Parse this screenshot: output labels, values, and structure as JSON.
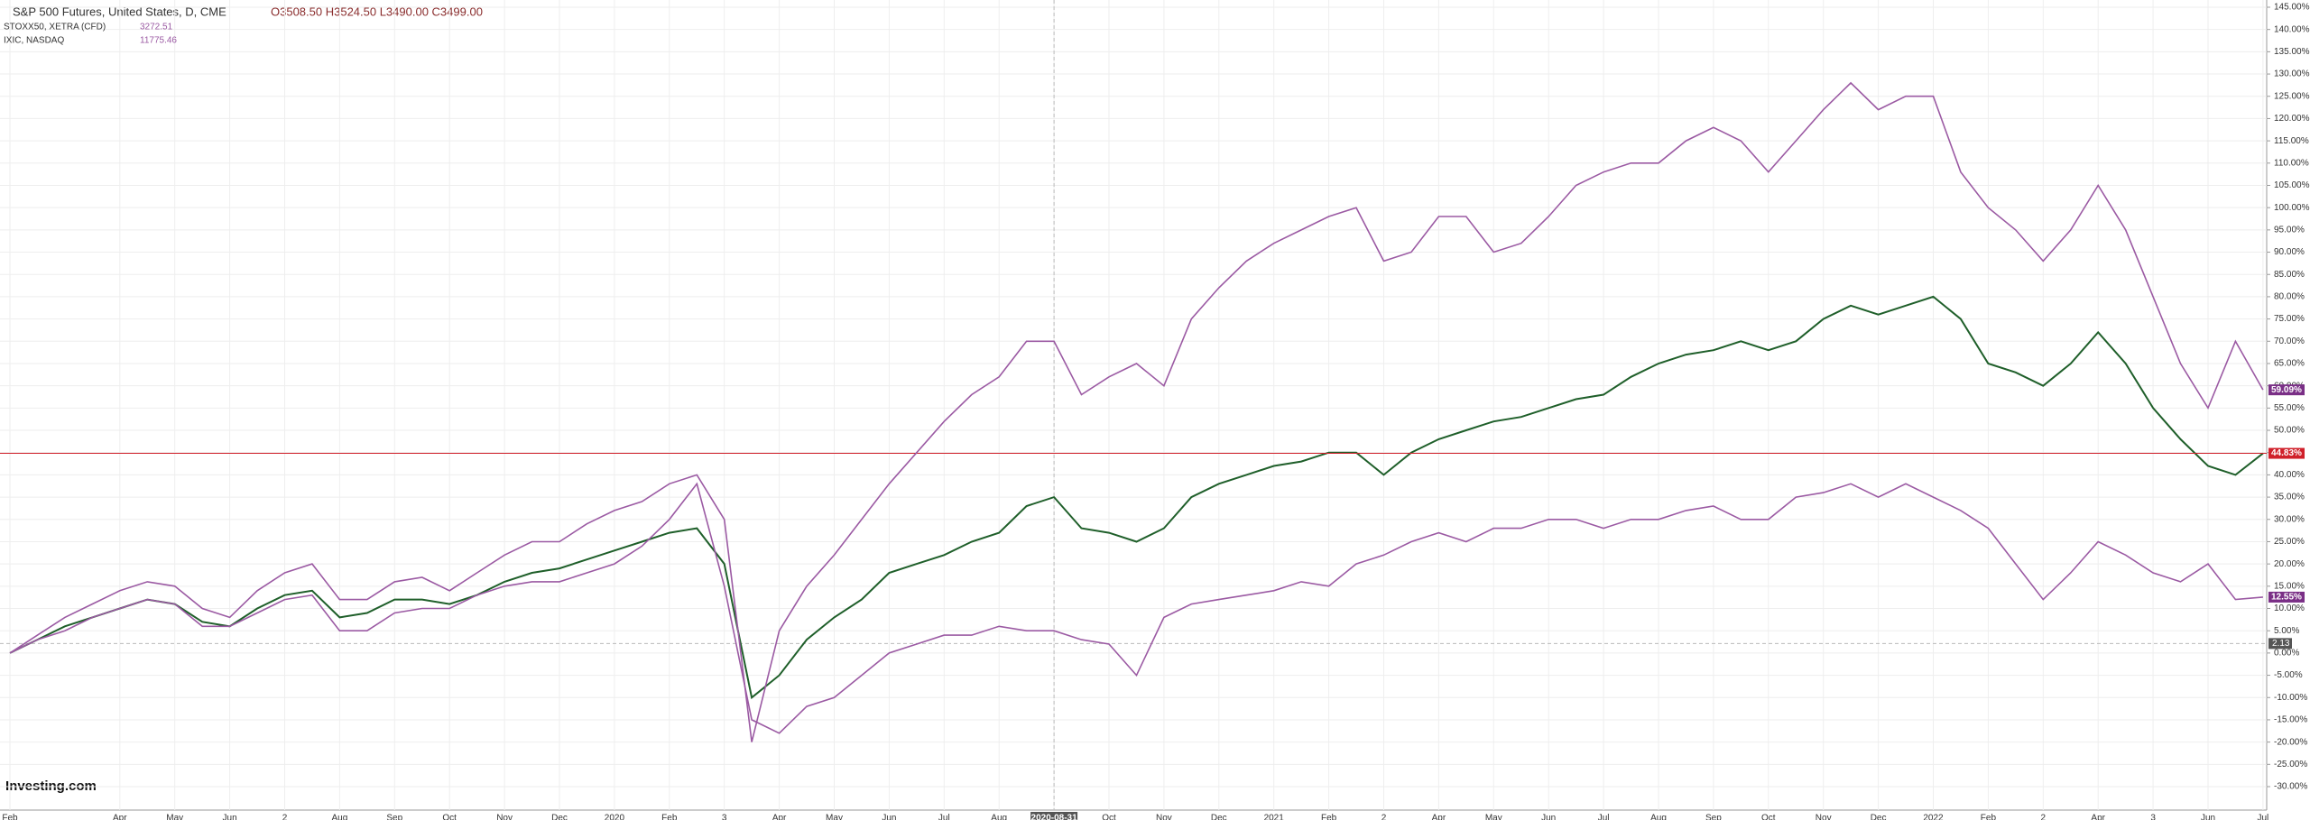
{
  "chart_data": {
    "type": "line",
    "title": "S&P 500 Futures, United States, D, CME",
    "ohlc": "O3508.50 H3524.50 L3490.00 C3499.00",
    "brand": "Investing.com",
    "categories": [
      "Feb",
      null,
      null,
      null,
      "Apr",
      null,
      "May",
      null,
      "Jun",
      null,
      "2",
      null,
      "Aug",
      null,
      "Sep",
      null,
      "Oct",
      null,
      "Nov",
      null,
      "Dec",
      null,
      "2020",
      null,
      "Feb",
      null,
      "3",
      null,
      "Apr",
      null,
      "May",
      null,
      "Jun",
      null,
      "Jul",
      null,
      "Aug",
      null,
      "2020-08-31",
      null,
      "Oct",
      null,
      "Nov",
      null,
      "Dec",
      null,
      "2021",
      null,
      "Feb",
      null,
      "2",
      null,
      "Apr",
      null,
      "May",
      null,
      "Jun",
      null,
      "Jul",
      null,
      "Aug",
      null,
      "Sep",
      null,
      "Oct",
      null,
      "Nov",
      null,
      "Dec",
      null,
      "2022",
      null,
      "Feb",
      null,
      "2",
      null,
      "Apr",
      null,
      "3",
      null,
      "Jun",
      null,
      "Jul"
    ],
    "series": [
      {
        "name": "S&P 500 Futures",
        "color": "#1f5f2a",
        "values": [
          0,
          3,
          6,
          8,
          10,
          12,
          11,
          7,
          6,
          10,
          13,
          14,
          8,
          9,
          12,
          12,
          11,
          13,
          16,
          18,
          19,
          21,
          23,
          25,
          27,
          28,
          20,
          -10,
          -5,
          3,
          8,
          12,
          18,
          20,
          22,
          25,
          27,
          33,
          35,
          28,
          27,
          25,
          28,
          35,
          38,
          40,
          42,
          43,
          45,
          45,
          40,
          45,
          48,
          50,
          52,
          53,
          55,
          57,
          58,
          62,
          65,
          67,
          68,
          70,
          68,
          70,
          75,
          78,
          76,
          78,
          80,
          75,
          65,
          63,
          60,
          65,
          72,
          65,
          55,
          48,
          42,
          40,
          44.83
        ],
        "value_labels": [
          null,
          null,
          null,
          null,
          null,
          null,
          null,
          null,
          null,
          null,
          null,
          null,
          null,
          null,
          null,
          null,
          null,
          null,
          null,
          null,
          null,
          null,
          null,
          null,
          null,
          null,
          null,
          null,
          null,
          null,
          null,
          null,
          null,
          null,
          null,
          null,
          null,
          null,
          null,
          null,
          null,
          null,
          null,
          null,
          null,
          null,
          null,
          null,
          null,
          null,
          null,
          null,
          null,
          null,
          null,
          null,
          null,
          null,
          null,
          null,
          null,
          null,
          null,
          null,
          null,
          null,
          null,
          null,
          null,
          null,
          null,
          null,
          null,
          null,
          null,
          null,
          null,
          null,
          null,
          null,
          null,
          null,
          "44.83%"
        ],
        "label_color": "#d0202a"
      },
      {
        "name": "STOXX50, XETRA (CFD)",
        "quote": "3272.51",
        "color": "#9b5aa3",
        "values": [
          0,
          3,
          5,
          8,
          10,
          12,
          11,
          6,
          6,
          9,
          12,
          13,
          5,
          5,
          9,
          10,
          10,
          13,
          15,
          16,
          16,
          18,
          20,
          24,
          30,
          38,
          15,
          -15,
          -18,
          -12,
          -10,
          -5,
          0,
          2,
          4,
          4,
          6,
          5,
          5,
          3,
          2,
          -5,
          8,
          11,
          12,
          13,
          14,
          16,
          15,
          20,
          22,
          25,
          27,
          25,
          28,
          28,
          30,
          30,
          28,
          30,
          30,
          32,
          33,
          30,
          30,
          35,
          36,
          38,
          35,
          38,
          35,
          32,
          28,
          20,
          12,
          18,
          25,
          22,
          18,
          16,
          20,
          12,
          12.55
        ],
        "value_labels": [
          null,
          null,
          null,
          null,
          null,
          null,
          null,
          null,
          null,
          null,
          null,
          null,
          null,
          null,
          null,
          null,
          null,
          null,
          null,
          null,
          null,
          null,
          null,
          null,
          null,
          null,
          null,
          null,
          null,
          null,
          null,
          null,
          null,
          null,
          null,
          null,
          null,
          null,
          null,
          null,
          null,
          null,
          null,
          null,
          null,
          null,
          null,
          null,
          null,
          null,
          null,
          null,
          null,
          null,
          null,
          null,
          null,
          null,
          null,
          null,
          null,
          null,
          null,
          null,
          null,
          null,
          null,
          null,
          null,
          null,
          null,
          null,
          null,
          null,
          null,
          null,
          null,
          null,
          null,
          null,
          null,
          null,
          "12.55%"
        ],
        "label_color": "#7a2f86"
      },
      {
        "name": "IXIC, NASDAQ",
        "quote": "11775.46",
        "color": "#9b5aa3",
        "values": [
          0,
          4,
          8,
          11,
          14,
          16,
          15,
          10,
          8,
          14,
          18,
          20,
          12,
          12,
          16,
          17,
          14,
          18,
          22,
          25,
          25,
          29,
          32,
          34,
          38,
          40,
          30,
          -20,
          5,
          15,
          22,
          30,
          38,
          45,
          52,
          58,
          62,
          70,
          70,
          58,
          62,
          65,
          60,
          75,
          82,
          88,
          92,
          95,
          98,
          100,
          88,
          90,
          98,
          98,
          90,
          92,
          98,
          105,
          108,
          110,
          110,
          115,
          118,
          115,
          108,
          115,
          122,
          128,
          122,
          125,
          125,
          108,
          100,
          95,
          88,
          95,
          105,
          95,
          80,
          65,
          55,
          70,
          59.09
        ],
        "value_labels": [
          null,
          null,
          null,
          null,
          null,
          null,
          null,
          null,
          null,
          null,
          null,
          null,
          null,
          null,
          null,
          null,
          null,
          null,
          null,
          null,
          null,
          null,
          null,
          null,
          null,
          null,
          null,
          null,
          null,
          null,
          null,
          null,
          null,
          null,
          null,
          null,
          null,
          null,
          null,
          null,
          null,
          null,
          null,
          null,
          null,
          null,
          null,
          null,
          null,
          null,
          null,
          null,
          null,
          null,
          null,
          null,
          null,
          null,
          null,
          null,
          null,
          null,
          null,
          null,
          null,
          null,
          null,
          null,
          null,
          null,
          null,
          null,
          null,
          null,
          null,
          null,
          null,
          null,
          null,
          null,
          null,
          null,
          "59.09%"
        ],
        "label_color": "#7a2f86"
      }
    ],
    "crosshair_y": 2.13,
    "ylim": [
      -30,
      145
    ],
    "yticks": [
      {
        "value": -30,
        "label": "-30.00%"
      },
      {
        "value": -25,
        "label": "-25.00%"
      },
      {
        "value": -20,
        "label": "-20.00%"
      },
      {
        "value": -15,
        "label": "-15.00%"
      },
      {
        "value": -10,
        "label": "-10.00%"
      },
      {
        "value": -5,
        "label": "-5.00%"
      },
      {
        "value": 0,
        "label": "0.00%"
      },
      {
        "value": 5,
        "label": "5.00%"
      },
      {
        "value": 10,
        "label": "10.00%"
      },
      {
        "value": 15,
        "label": "15.00%"
      },
      {
        "value": 20,
        "label": "20.00%"
      },
      {
        "value": 25,
        "label": "25.00%"
      },
      {
        "value": 30,
        "label": "30.00%"
      },
      {
        "value": 35,
        "label": "35.00%"
      },
      {
        "value": 40,
        "label": "40.00%"
      },
      {
        "value": 45,
        "label": "45.00%"
      },
      {
        "value": 50,
        "label": "50.00%"
      },
      {
        "value": 55,
        "label": "55.00%"
      },
      {
        "value": 60,
        "label": "60.00%"
      },
      {
        "value": 65,
        "label": "65.00%"
      },
      {
        "value": 70,
        "label": "70.00%"
      },
      {
        "value": 75,
        "label": "75.00%"
      },
      {
        "value": 80,
        "label": "80.00%"
      },
      {
        "value": 85,
        "label": "85.00%"
      },
      {
        "value": 90,
        "label": "90.00%"
      },
      {
        "value": 95,
        "label": "95.00%"
      },
      {
        "value": 100,
        "label": "100.00%"
      },
      {
        "value": 105,
        "label": "105.00%"
      },
      {
        "value": 110,
        "label": "110.00%"
      },
      {
        "value": 115,
        "label": "115.00%"
      },
      {
        "value": 120,
        "label": "120.00%"
      },
      {
        "value": 125,
        "label": "125.00%"
      },
      {
        "value": 130,
        "label": "130.00%"
      },
      {
        "value": 135,
        "label": "135.00%"
      },
      {
        "value": 140,
        "label": "140.00%"
      },
      {
        "value": 145,
        "label": "145.00%"
      }
    ],
    "grid": true
  }
}
